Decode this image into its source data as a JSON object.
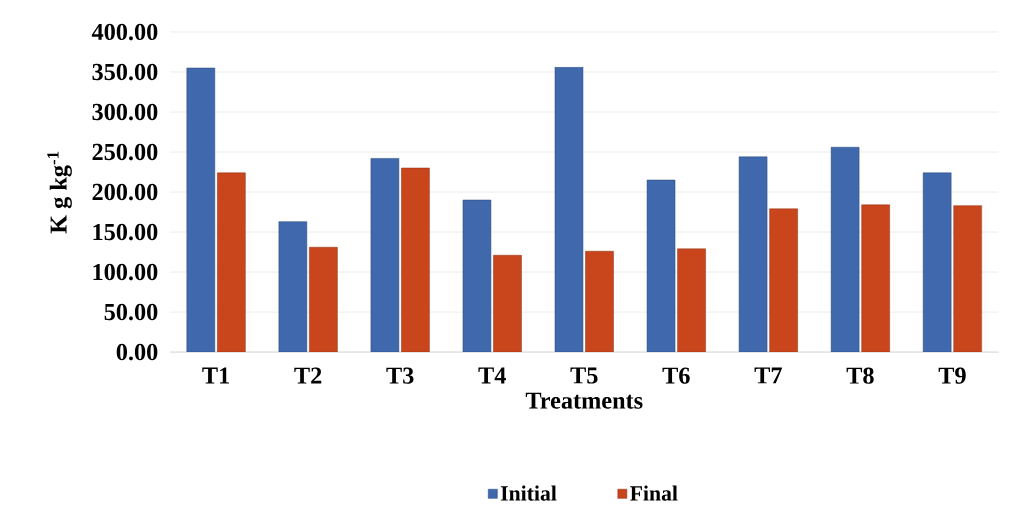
{
  "chart_data": {
    "type": "bar",
    "xlabel": "Treatments",
    "ylabel": "K g kg$^{-1}$",
    "categories": [
      "T1",
      "T2",
      "T3",
      "T4",
      "T5",
      "T6",
      "T7",
      "T8",
      "T9"
    ],
    "series": [
      {
        "name": "Initial",
        "color": "#3f68ad",
        "values": [
          355,
          163,
          242,
          190,
          356,
          215,
          244,
          256,
          224
        ]
      },
      {
        "name": "Final",
        "color": "#c9461c",
        "values": [
          224,
          131,
          230,
          121,
          126,
          129,
          179,
          184,
          183
        ]
      }
    ],
    "ylim": [
      0,
      400
    ],
    "yticks": [
      {
        "value": 0,
        "label": "0.00"
      },
      {
        "value": 50,
        "label": "50.00"
      },
      {
        "value": 100,
        "label": "100.00"
      },
      {
        "value": 150,
        "label": "150.00"
      },
      {
        "value": 200,
        "label": "200.00"
      },
      {
        "value": 250,
        "label": "250.00"
      },
      {
        "value": 300,
        "label": "300.00"
      },
      {
        "value": 350,
        "label": "350.00"
      },
      {
        "value": 400,
        "label": "400.00"
      }
    ],
    "grid": "y",
    "legend": "bottom"
  }
}
